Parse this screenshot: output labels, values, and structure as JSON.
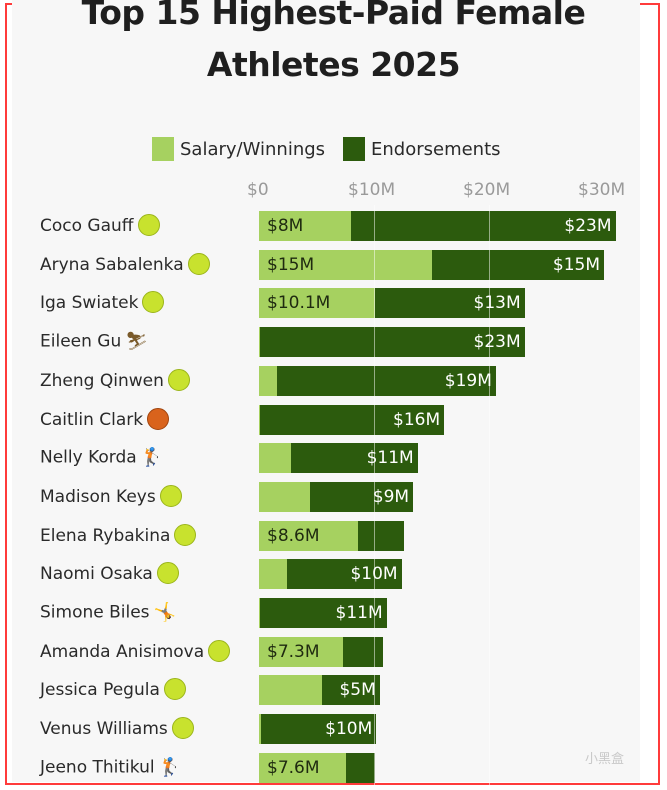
{
  "chart_data": {
    "type": "bar",
    "orientation": "horizontal",
    "stacked": true,
    "title_line1": "Top 15 Highest-Paid Female",
    "title_line2": "Athletes 2025",
    "legend": [
      {
        "name": "Salary/Winnings",
        "color": "#a6d160"
      },
      {
        "name": "Endorsements",
        "color": "#2c5b0d"
      }
    ],
    "x_ticks": [
      "$0",
      "$10M",
      "$20M",
      "$30M"
    ],
    "xlim": [
      0,
      31
    ],
    "rows": [
      {
        "name": "Coco Gauff",
        "sport": "tennis",
        "salary": 8,
        "endorsements": 23,
        "salary_label": "$8M",
        "endorsements_label": "$23M"
      },
      {
        "name": "Aryna Sabalenka",
        "sport": "tennis",
        "salary": 15,
        "endorsements": 15,
        "salary_label": "$15M",
        "endorsements_label": "$15M"
      },
      {
        "name": "Iga Swiatek",
        "sport": "tennis",
        "salary": 10.1,
        "endorsements": 13,
        "salary_label": "$10.1M",
        "endorsements_label": "$13M"
      },
      {
        "name": "Eileen Gu",
        "sport": "skiing",
        "salary": 0.1,
        "endorsements": 23,
        "salary_label": "",
        "endorsements_label": "$23M"
      },
      {
        "name": "Zheng Qinwen",
        "sport": "tennis",
        "salary": 1.6,
        "endorsements": 19,
        "salary_label": "",
        "endorsements_label": "$19M"
      },
      {
        "name": "Caitlin Clark",
        "sport": "basketball",
        "salary": 0.1,
        "endorsements": 16,
        "salary_label": "",
        "endorsements_label": "$16M"
      },
      {
        "name": "Nelly Korda",
        "sport": "golf",
        "salary": 2.8,
        "endorsements": 11,
        "salary_label": "",
        "endorsements_label": "$11M"
      },
      {
        "name": "Madison Keys",
        "sport": "tennis",
        "salary": 4.4,
        "endorsements": 9,
        "salary_label": "",
        "endorsements_label": "$9M"
      },
      {
        "name": "Elena Rybakina",
        "sport": "tennis",
        "salary": 8.6,
        "endorsements": 4,
        "salary_label": "$8.6M",
        "endorsements_label": ""
      },
      {
        "name": "Naomi Osaka",
        "sport": "tennis",
        "salary": 2.4,
        "endorsements": 10,
        "salary_label": "",
        "endorsements_label": "$10M"
      },
      {
        "name": "Simone Biles",
        "sport": "gymnastics",
        "salary": 0.1,
        "endorsements": 11,
        "salary_label": "",
        "endorsements_label": "$11M"
      },
      {
        "name": "Amanda Anisimova",
        "sport": "tennis",
        "salary": 7.3,
        "endorsements": 3.5,
        "salary_label": "$7.3M",
        "endorsements_label": ""
      },
      {
        "name": "Jessica Pegula",
        "sport": "tennis",
        "salary": 5.5,
        "endorsements": 5,
        "salary_label": "",
        "endorsements_label": "$5M"
      },
      {
        "name": "Venus Williams",
        "sport": "tennis",
        "salary": 0.2,
        "endorsements": 10,
        "salary_label": "",
        "endorsements_label": "$10M"
      },
      {
        "name": "Jeeno Thitikul",
        "sport": "golf",
        "salary": 7.6,
        "endorsements": 2.5,
        "salary_label": "$7.6M",
        "endorsements_label": ""
      }
    ]
  },
  "watermark": "小黑盒"
}
